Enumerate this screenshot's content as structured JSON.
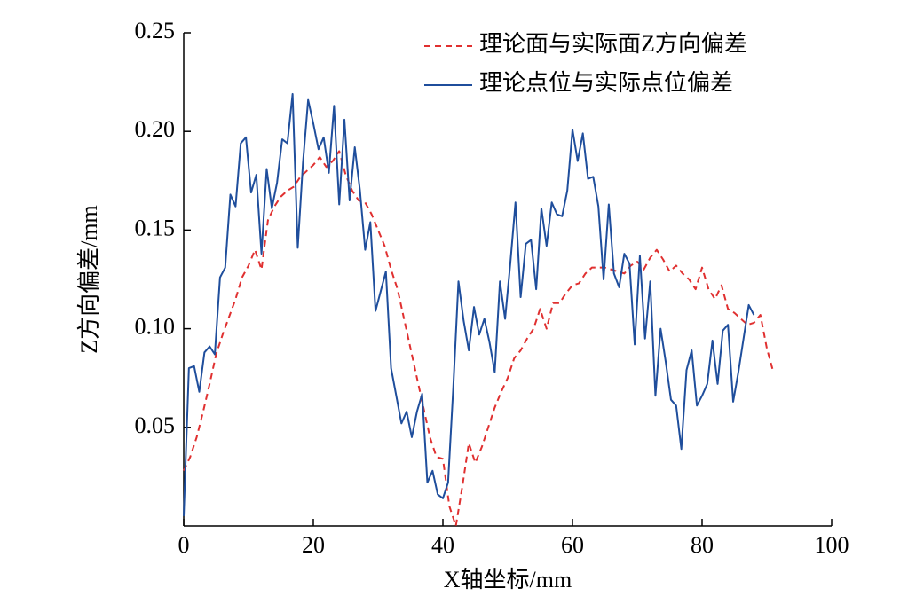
{
  "chart_data": {
    "type": "line",
    "xlabel": "X轴坐标/mm",
    "ylabel": "Z方向偏差/mm",
    "xlim": [
      0,
      100
    ],
    "ylim": [
      0,
      0.25
    ],
    "xticks": [
      0,
      20,
      40,
      60,
      80,
      100
    ],
    "yticks": [
      0.05,
      {
        "value": 0.1,
        "label": "0.10"
      },
      0.15,
      {
        "value": 0.2,
        "label": "0.20"
      },
      0.25
    ],
    "legend": "upper right",
    "series": [
      {
        "name": "理论面与实际面Z方向偏差",
        "color": "#e03030",
        "dash": true,
        "x": [
          0,
          1,
          2,
          3,
          4,
          5,
          6,
          7,
          8,
          9,
          10,
          11,
          12,
          13,
          14,
          15,
          16,
          17,
          18,
          19,
          20,
          21,
          22,
          23,
          24,
          25,
          26,
          27,
          28,
          29,
          30,
          31,
          32,
          33,
          34,
          35,
          36,
          37,
          38,
          39,
          40,
          41,
          42,
          43,
          44,
          45,
          46,
          47,
          48,
          49,
          50,
          51,
          52,
          53,
          54,
          55,
          56,
          57,
          58,
          59,
          60,
          61,
          62,
          63,
          64,
          65,
          66,
          67,
          68,
          69,
          70,
          71,
          72,
          73,
          74,
          75,
          76,
          77,
          78,
          79,
          80,
          81,
          82,
          83,
          84,
          85,
          86,
          87,
          88,
          89,
          90,
          91
        ],
        "values": [
          0.028,
          0.035,
          0.045,
          0.058,
          0.072,
          0.087,
          0.097,
          0.106,
          0.115,
          0.126,
          0.132,
          0.14,
          0.13,
          0.155,
          0.162,
          0.167,
          0.17,
          0.172,
          0.177,
          0.18,
          0.183,
          0.187,
          0.182,
          0.185,
          0.19,
          0.178,
          0.17,
          0.165,
          0.164,
          0.158,
          0.15,
          0.142,
          0.13,
          0.12,
          0.105,
          0.09,
          0.075,
          0.06,
          0.045,
          0.035,
          0.034,
          0.01,
          0.0,
          0.02,
          0.042,
          0.032,
          0.04,
          0.05,
          0.06,
          0.068,
          0.075,
          0.085,
          0.089,
          0.095,
          0.1,
          0.11,
          0.1,
          0.113,
          0.113,
          0.118,
          0.122,
          0.123,
          0.128,
          0.131,
          0.131,
          0.131,
          0.13,
          0.129,
          0.128,
          0.132,
          0.134,
          0.13,
          0.136,
          0.14,
          0.135,
          0.129,
          0.132,
          0.128,
          0.125,
          0.12,
          0.131,
          0.12,
          0.115,
          0.122,
          0.11,
          0.108,
          0.105,
          0.102,
          0.103,
          0.107,
          0.09,
          0.078
        ]
      },
      {
        "name": "理论点位与实际点位偏差",
        "color": "#1f4e9c",
        "dash": false,
        "x": [
          0,
          0.8,
          1.6,
          2.4,
          3.2,
          4,
          4.8,
          5.6,
          6.4,
          7.2,
          8,
          8.8,
          9.6,
          10.4,
          11.2,
          12,
          12.8,
          13.6,
          14.4,
          15.2,
          16,
          16.8,
          17.6,
          18.4,
          19.2,
          20,
          20.8,
          21.6,
          22.4,
          23.2,
          24,
          24.8,
          25.6,
          26.4,
          27.2,
          28,
          28.8,
          29.6,
          30.4,
          31.2,
          32,
          32.8,
          33.6,
          34.4,
          35.2,
          36,
          36.8,
          37.6,
          38.4,
          39.2,
          40,
          40.8,
          41.6,
          42.4,
          43.2,
          44,
          44.8,
          45.6,
          46.4,
          47.2,
          48,
          48.8,
          49.6,
          50.4,
          51.2,
          52,
          52.8,
          53.6,
          54.4,
          55.2,
          56,
          56.8,
          57.6,
          58.4,
          59.2,
          60,
          60.8,
          61.6,
          62.4,
          63.2,
          64,
          64.8,
          65.6,
          66.4,
          67.2,
          68,
          68.8,
          69.6,
          70.4,
          71.2,
          72,
          72.8,
          73.6,
          74.4,
          75.2,
          76,
          76.8,
          77.6,
          78.4,
          79.2,
          80,
          80.8,
          81.6,
          82.4,
          83.2,
          84,
          84.8,
          85.6,
          86.4,
          87.2,
          88
        ],
        "values": [
          0.005,
          0.08,
          0.081,
          0.068,
          0.088,
          0.091,
          0.087,
          0.126,
          0.131,
          0.168,
          0.162,
          0.194,
          0.197,
          0.169,
          0.178,
          0.138,
          0.181,
          0.161,
          0.174,
          0.196,
          0.194,
          0.219,
          0.141,
          0.184,
          0.216,
          0.204,
          0.191,
          0.197,
          0.179,
          0.213,
          0.163,
          0.206,
          0.165,
          0.192,
          0.17,
          0.14,
          0.154,
          0.109,
          0.119,
          0.129,
          0.08,
          0.066,
          0.052,
          0.058,
          0.045,
          0.058,
          0.067,
          0.022,
          0.028,
          0.016,
          0.014,
          0.022,
          0.07,
          0.124,
          0.104,
          0.089,
          0.111,
          0.097,
          0.105,
          0.093,
          0.078,
          0.124,
          0.105,
          0.133,
          0.164,
          0.116,
          0.143,
          0.145,
          0.12,
          0.161,
          0.142,
          0.164,
          0.158,
          0.157,
          0.17,
          0.201,
          0.185,
          0.199,
          0.176,
          0.177,
          0.162,
          0.125,
          0.163,
          0.128,
          0.121,
          0.138,
          0.133,
          0.092,
          0.137,
          0.095,
          0.124,
          0.066,
          0.1,
          0.083,
          0.064,
          0.061,
          0.039,
          0.079,
          0.089,
          0.061,
          0.066,
          0.072,
          0.094,
          0.072,
          0.099,
          0.102,
          0.063,
          0.078,
          0.095,
          0.112,
          0.107
        ]
      }
    ]
  }
}
